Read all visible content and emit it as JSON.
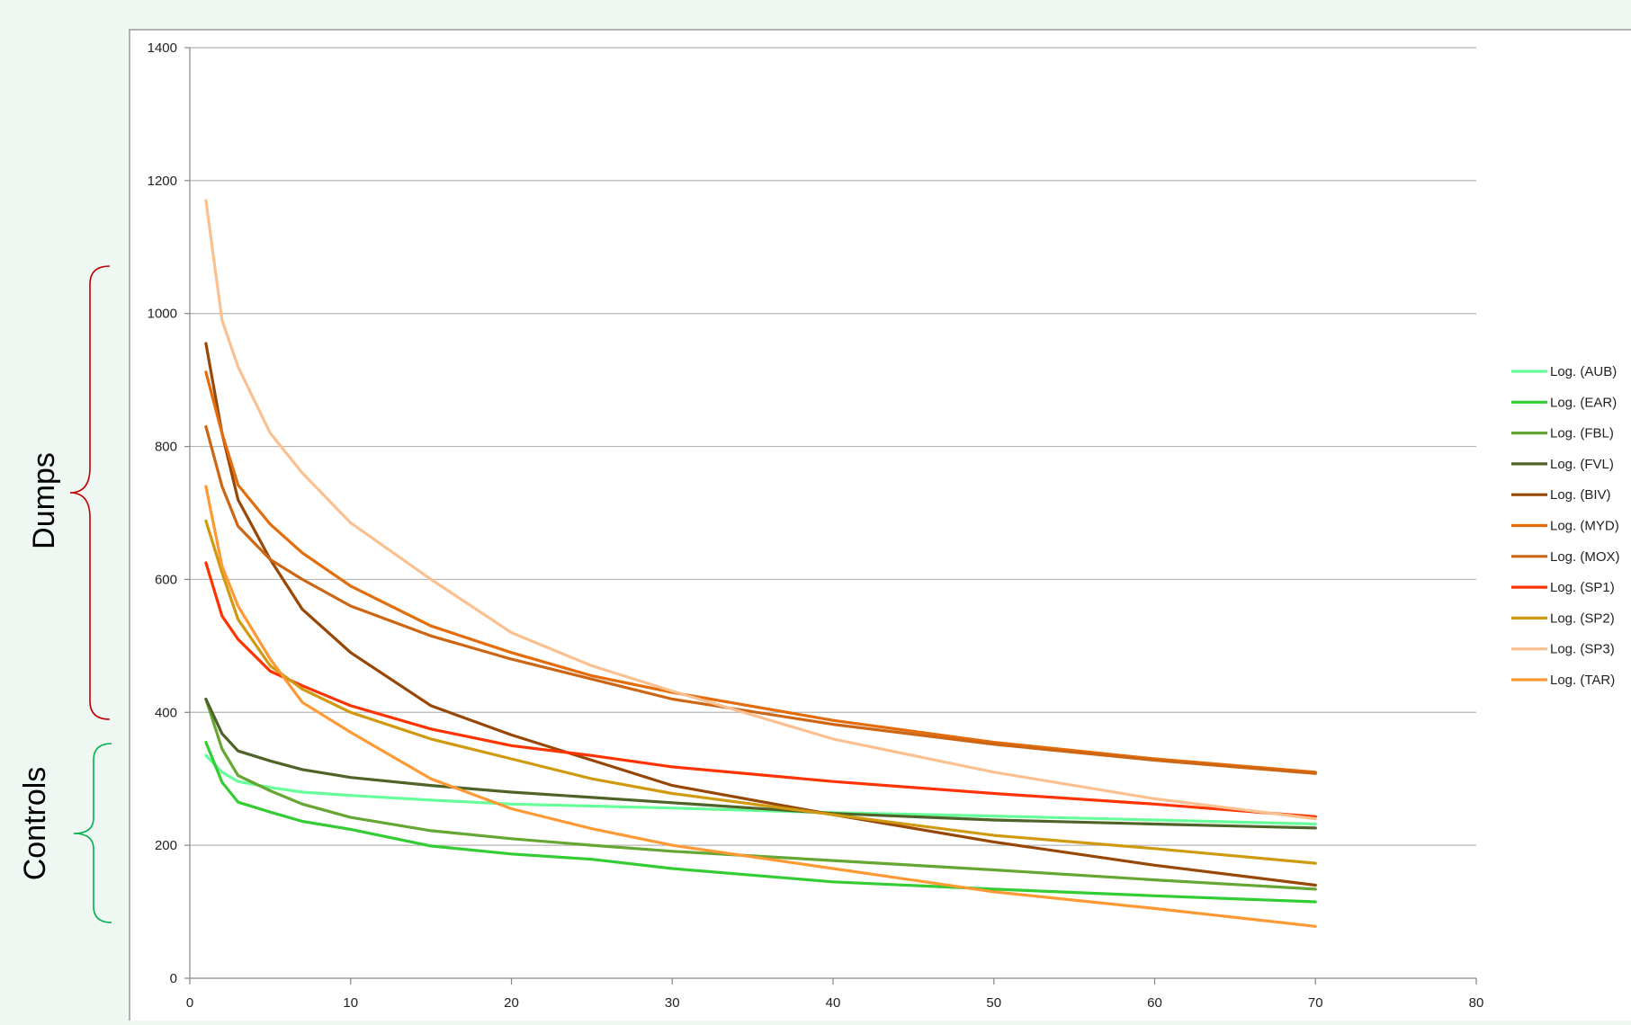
{
  "annotations": {
    "dumps_label": "Dumps",
    "controls_label": "Controls",
    "dumps_color": "#c00000",
    "controls_color": "#00b050"
  },
  "chart_data": {
    "type": "line",
    "title": "",
    "xlabel": "",
    "ylabel": "",
    "xlim": [
      0,
      80
    ],
    "ylim": [
      0,
      1400
    ],
    "x_ticks": [
      0,
      10,
      20,
      30,
      40,
      50,
      60,
      70,
      80
    ],
    "y_ticks": [
      0,
      200,
      400,
      600,
      800,
      1000,
      1200,
      1400
    ],
    "grid": "horizontal",
    "legend_position": "right",
    "x": [
      1,
      2,
      3,
      5,
      7,
      10,
      15,
      20,
      25,
      30,
      40,
      50,
      60,
      70
    ],
    "series": [
      {
        "name": "Log. (AUB)",
        "color": "#66ff99",
        "values": [
          335,
          310,
          296,
          287,
          280,
          275,
          268,
          262,
          259,
          256,
          249,
          244,
          238,
          232
        ]
      },
      {
        "name": "Log. (EAR)",
        "color": "#33cc33",
        "values": [
          355,
          295,
          265,
          250,
          236,
          224,
          199,
          187,
          179,
          165,
          145,
          134,
          124,
          115
        ]
      },
      {
        "name": "Log. (FBL)",
        "color": "#66a633",
        "values": [
          420,
          345,
          305,
          282,
          262,
          242,
          222,
          210,
          200,
          191,
          177,
          163,
          148,
          134
        ]
      },
      {
        "name": "Log. (FVL)",
        "color": "#4f6228",
        "values": [
          420,
          368,
          342,
          327,
          314,
          302,
          290,
          280,
          272,
          264,
          248,
          238,
          232,
          226
        ]
      },
      {
        "name": "Log. (BIV)",
        "color": "#974706",
        "values": [
          955,
          820,
          720,
          630,
          555,
          490,
          410,
          366,
          328,
          290,
          246,
          205,
          170,
          140
        ]
      },
      {
        "name": "Log. (MYD)",
        "color": "#e46c0a",
        "values": [
          912,
          820,
          742,
          683,
          640,
          590,
          530,
          490,
          455,
          430,
          388,
          355,
          330,
          310
        ]
      },
      {
        "name": "Log. (MOX)",
        "color": "#cc6614",
        "values": [
          830,
          740,
          680,
          630,
          600,
          560,
          515,
          480,
          450,
          420,
          382,
          352,
          328,
          308
        ]
      },
      {
        "name": "Log. (SP1)",
        "color": "#ff3300",
        "values": [
          625,
          545,
          510,
          462,
          440,
          410,
          375,
          350,
          335,
          318,
          296,
          278,
          262,
          243
        ]
      },
      {
        "name": "Log. (SP2)",
        "color": "#d09a10",
        "values": [
          688,
          610,
          540,
          470,
          435,
          400,
          360,
          330,
          300,
          278,
          246,
          215,
          195,
          173
        ]
      },
      {
        "name": "Log. (SP3)",
        "color": "#fac090",
        "values": [
          1170,
          990,
          920,
          820,
          760,
          685,
          600,
          520,
          470,
          432,
          360,
          310,
          270,
          240
        ]
      },
      {
        "name": "Log. (TAR)",
        "color": "#ff9933",
        "values": [
          740,
          620,
          560,
          480,
          415,
          370,
          300,
          255,
          225,
          200,
          165,
          130,
          105,
          78
        ]
      }
    ]
  }
}
